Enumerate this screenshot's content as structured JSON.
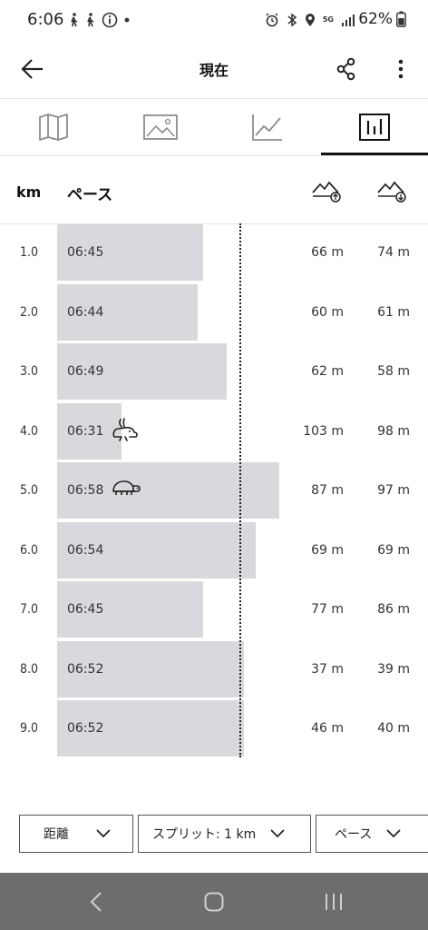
{
  "status": {
    "time": "6:06",
    "battery": "62%",
    "network": "5G"
  },
  "appbar": {
    "title": "現在"
  },
  "tabs": [
    {
      "icon": "map-icon",
      "active": false
    },
    {
      "icon": "photo-icon",
      "active": false
    },
    {
      "icon": "line-chart-icon",
      "active": false
    },
    {
      "icon": "bar-chart-icon",
      "active": true
    }
  ],
  "header": {
    "km": "km",
    "pace": "ペース"
  },
  "splits": [
    {
      "km": "1.0",
      "pace": "06:45",
      "pace_seconds": 405,
      "up": "66 m",
      "down": "74 m",
      "badge": null
    },
    {
      "km": "2.0",
      "pace": "06:44",
      "pace_seconds": 404,
      "up": "60 m",
      "down": "61 m",
      "badge": null
    },
    {
      "km": "3.0",
      "pace": "06:49",
      "pace_seconds": 409,
      "up": "62 m",
      "down": "58 m",
      "badge": null
    },
    {
      "km": "4.0",
      "pace": "06:31",
      "pace_seconds": 391,
      "up": "103 m",
      "down": "98 m",
      "badge": "rabbit-icon"
    },
    {
      "km": "5.0",
      "pace": "06:58",
      "pace_seconds": 418,
      "up": "87 m",
      "down": "97 m",
      "badge": "turtle-icon"
    },
    {
      "km": "6.0",
      "pace": "06:54",
      "pace_seconds": 414,
      "up": "69 m",
      "down": "69 m",
      "badge": null
    },
    {
      "km": "7.0",
      "pace": "06:45",
      "pace_seconds": 405,
      "up": "77 m",
      "down": "86 m",
      "badge": null
    },
    {
      "km": "8.0",
      "pace": "06:52",
      "pace_seconds": 412,
      "up": "37 m",
      "down": "39 m",
      "badge": null
    },
    {
      "km": "9.0",
      "pace": "06:52",
      "pace_seconds": 412,
      "up": "46 m",
      "down": "40 m",
      "badge": null
    }
  ],
  "filters": {
    "distance": "距離",
    "split": "スプリット: 1 km",
    "pace": "ペース"
  },
  "colors": {
    "bar": "#d7d9dc",
    "navbar": "#6d6d6d",
    "text": "#1a1a1a"
  }
}
